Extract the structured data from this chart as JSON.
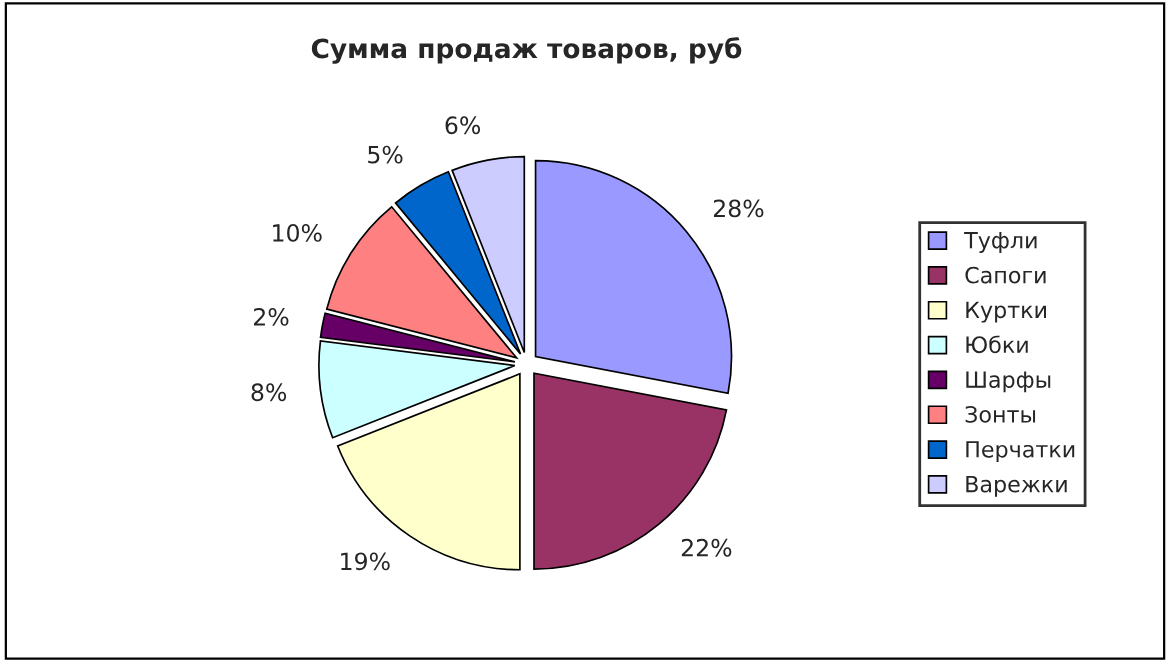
{
  "chart_data": {
    "type": "pie",
    "title": "Сумма продаж товаров, руб",
    "categories": [
      "Туфли",
      "Сапоги",
      "Куртки",
      "Юбки",
      "Шарфы",
      "Зонты",
      "Перчатки",
      "Варежки"
    ],
    "values": [
      28,
      22,
      19,
      8,
      2,
      10,
      5,
      6
    ],
    "value_labels": [
      "28%",
      "22%",
      "19%",
      "8%",
      "2%",
      "10%",
      "5%",
      "6%"
    ],
    "colors": [
      "#9999ff",
      "#993366",
      "#ffffcc",
      "#ccffff",
      "#660066",
      "#ff8080",
      "#0066cc",
      "#ccccff"
    ],
    "legend": "right"
  }
}
